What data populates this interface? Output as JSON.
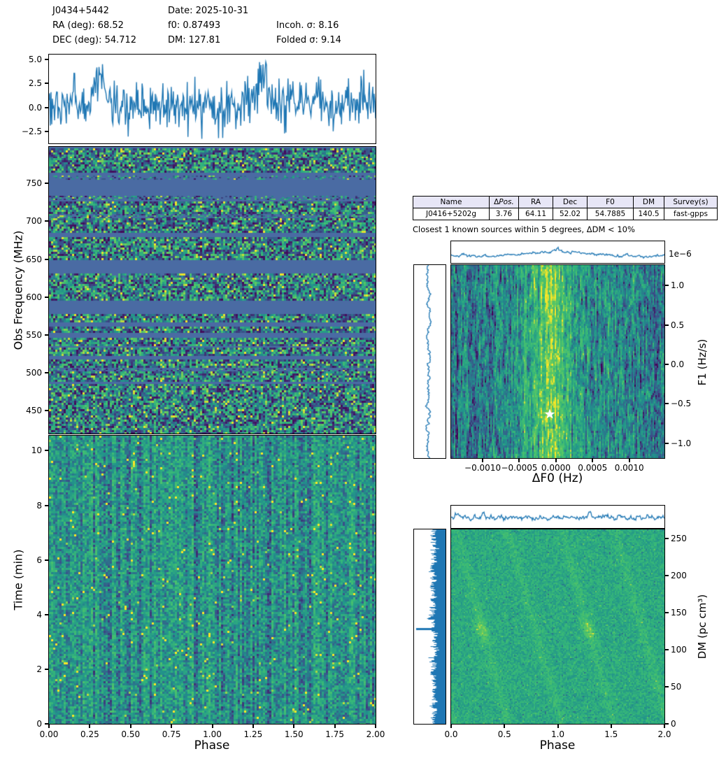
{
  "header": {
    "col1": [
      "J0434+5442",
      "RA (deg): 68.52",
      "DEC (deg): 54.712"
    ],
    "col2": [
      "Date: 2025-10-31",
      "f0: 0.87493",
      "DM: 127.81"
    ],
    "col3": [
      "Incoh. σ: 8.16",
      "Folded σ: 9.14"
    ]
  },
  "table": {
    "headers": [
      "Name",
      "ΔPos.",
      "RA",
      "Dec",
      "F0",
      "DM",
      "Survey(s)"
    ],
    "rows": [
      [
        "J0416+5202g",
        "3.76",
        "64.11",
        "52.02",
        "54.7885",
        "140.5",
        "fast-gpps"
      ]
    ],
    "caption": "Closest 1 known sources within 5 degrees, ΔDM < 10%"
  },
  "colors": {
    "accent_line": "#1f77b4",
    "masked_channel": "#4a6ba3",
    "star": "#ffffff",
    "table_header_bg": "#e7e6f6",
    "border": "#000000",
    "viridis": [
      "#440154",
      "#3b528b",
      "#21918c",
      "#35b779",
      "#5ec962",
      "#fde725"
    ]
  },
  "chart_data": [
    {
      "id": "pulse_profile",
      "type": "line",
      "xlabel": "Phase",
      "ylabel": "",
      "xlim": [
        0,
        2
      ],
      "ylim": [
        -3.75,
        5.5
      ],
      "ytick_values": [
        5.0,
        2.5,
        0.0,
        -2.5
      ],
      "ytick_labels": [
        "5.0",
        "2.5",
        "0.0",
        "−2.5"
      ],
      "peak_phases": [
        0.3,
        1.3
      ],
      "peak_amplitude": 2.7,
      "noise_sigma": 1.25,
      "baseline": 0.3,
      "description": "Folded pulse profile (two rotations), noisy blue trace peaking ~5.5 sigma at phase 0.3 and 1.3"
    },
    {
      "id": "freq_phase",
      "type": "heatmap",
      "xlabel": "",
      "ylabel": "Obs Frequency (MHz)",
      "xlim": [
        0,
        2
      ],
      "ylim": [
        420,
        798
      ],
      "ytick_values": [
        750,
        700,
        650,
        600,
        550,
        500,
        450
      ],
      "ytick_labels": [
        "750",
        "700",
        "650",
        "600",
        "550",
        "500",
        "450"
      ],
      "colormap": "viridis",
      "noise_bands": [
        [
          0.005,
          0.039,
          1
        ],
        [
          0.039,
          0.088,
          1
        ],
        [
          0.1,
          0.115,
          0.35
        ],
        [
          0.171,
          0.185,
          0.5
        ],
        [
          0.19,
          0.234,
          1
        ],
        [
          0.234,
          0.246,
          0.55
        ],
        [
          0.249,
          0.3,
          1
        ],
        [
          0.315,
          0.395,
          1
        ],
        [
          0.441,
          0.461,
          0.9
        ],
        [
          0.463,
          0.532,
          1
        ],
        [
          0.583,
          0.612,
          1
        ],
        [
          0.627,
          0.646,
          1
        ],
        [
          0.666,
          0.69,
          1
        ],
        [
          0.7,
          0.729,
          1
        ],
        [
          0.741,
          0.768,
          1
        ],
        [
          0.773,
          0.783,
          0.4
        ],
        [
          0.783,
          0.82,
          1
        ],
        [
          0.827,
          1.0,
          1
        ]
      ],
      "description": "Frequency vs phase subband plot; solid steel-blue rows are RFI-masked channels, speckled viridis rows are active subbands"
    },
    {
      "id": "time_phase",
      "type": "heatmap",
      "xlabel": "Phase",
      "ylabel": "Time (min)",
      "xlim": [
        0,
        2
      ],
      "ylim": [
        0,
        10.55
      ],
      "ytick_values": [
        10,
        8,
        6,
        4,
        2,
        0
      ],
      "ytick_labels": [
        "10",
        "8",
        "6",
        "4",
        "2",
        "0"
      ],
      "xtick_values": [
        0.0,
        0.25,
        0.5,
        0.75,
        1.0,
        1.25,
        1.5,
        1.75,
        2.0
      ],
      "xtick_labels": [
        "0.00",
        "0.25",
        "0.50",
        "0.75",
        "1.00",
        "1.25",
        "1.50",
        "1.75",
        "2.00"
      ],
      "colormap": "viridis",
      "description": "Time vs phase waterfall, dense viridis noise with vertical striping"
    },
    {
      "id": "f0f1_periodogram",
      "type": "heatmap",
      "xlabel": "ΔF0 (Hz)",
      "ylabel": "F1 (Hz/s)",
      "offset_text": "1e−6",
      "xlim": [
        -0.00143,
        0.00148
      ],
      "ylim": [
        -1.19,
        1.26
      ],
      "xtick_values": [
        -0.001,
        -0.0005,
        0.0,
        0.0005,
        0.001
      ],
      "xtick_labels": [
        "−0.0010",
        "−0.0005",
        "0.0000",
        "0.0005",
        "0.0010"
      ],
      "ytick_values": [
        1.0,
        0.5,
        0.0,
        -0.5,
        -1.0
      ],
      "ytick_labels": [
        "1.0",
        "0.5",
        "0.0",
        "−0.5",
        "−1.0"
      ],
      "colormap": "viridis",
      "bright_band_df0": -0.0001,
      "star_marker": {
        "df0": -0.0001,
        "f1_times_1e6": -0.62
      },
      "marginals": "top: ΔF0 power profile with central bump; left: F1 power profile wiggle",
      "description": "S/N over ΔF0–F1 grid; bright vertical band near ΔF0≈0 with white star at best trial"
    },
    {
      "id": "dm_phase",
      "type": "heatmap",
      "xlabel": "Phase",
      "ylabel": "DM (pc cm³)",
      "xlim": [
        0,
        2
      ],
      "ylim": [
        0,
        262
      ],
      "xtick_values": [
        0.0,
        0.5,
        1.0,
        1.5,
        2.0
      ],
      "xtick_labels": [
        "0.0",
        "0.5",
        "1.0",
        "1.5",
        "2.0"
      ],
      "ytick_values": [
        250,
        200,
        150,
        100,
        50,
        0
      ],
      "ytick_labels": [
        "250",
        "200",
        "150",
        "100",
        "50",
        "0"
      ],
      "colormap": "viridis",
      "best_dm": 127.81,
      "streak_phase_centers": [
        -0.72,
        -0.22,
        0.28,
        0.78,
        1.28,
        1.78
      ],
      "bright_blob_phases": [
        0.28,
        1.28
      ],
      "bright_blob_dm": 128,
      "marginals": "top: phase profile with spikes at 0.3 and 1.3; left: DM curve filled from right with spike at DM≈128",
      "description": "S/N vs DM and phase; faint diagonal streaks crossing at candidate DM"
    }
  ]
}
